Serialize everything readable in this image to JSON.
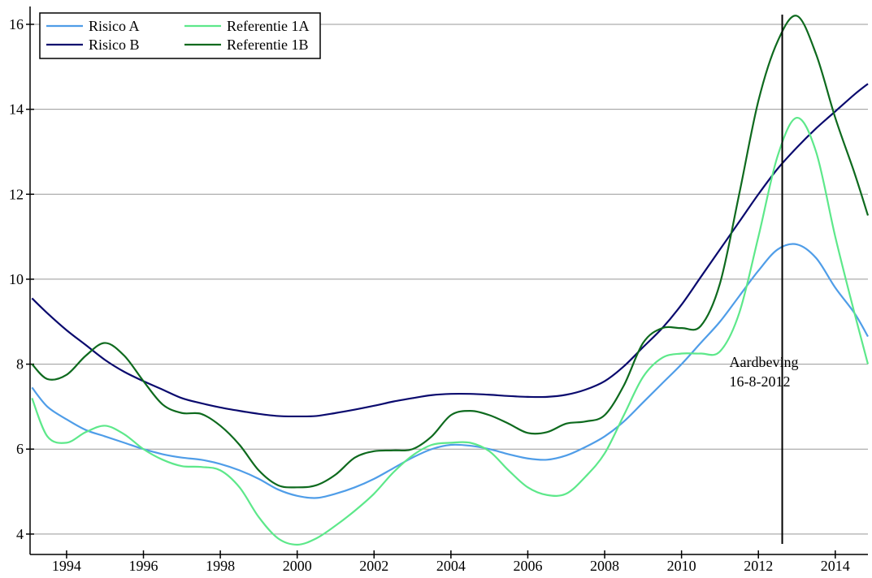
{
  "chart_data": {
    "type": "line",
    "x": [
      1993.1,
      1993.5,
      1994,
      1994.5,
      1995,
      1995.5,
      1996,
      1996.5,
      1997,
      1997.5,
      1998,
      1998.5,
      1999,
      1999.5,
      2000,
      2000.5,
      2001,
      2001.5,
      2002,
      2002.5,
      2003,
      2003.5,
      2004,
      2004.5,
      2005,
      2005.5,
      2006,
      2006.5,
      2007,
      2007.5,
      2008,
      2008.5,
      2009,
      2009.5,
      2010,
      2010.5,
      2011,
      2011.5,
      2012,
      2012.5,
      2013,
      2013.5,
      2014,
      2014.5,
      2014.85
    ],
    "series": [
      {
        "name": "Risico A",
        "color": "#4f9de8",
        "values": [
          7.45,
          7.0,
          6.7,
          6.45,
          6.3,
          6.15,
          6.0,
          5.88,
          5.8,
          5.75,
          5.65,
          5.5,
          5.3,
          5.05,
          4.9,
          4.85,
          4.95,
          5.1,
          5.3,
          5.55,
          5.8,
          6.0,
          6.1,
          6.08,
          6.0,
          5.88,
          5.78,
          5.75,
          5.85,
          6.05,
          6.3,
          6.65,
          7.1,
          7.55,
          8.0,
          8.5,
          9.0,
          9.6,
          10.2,
          10.7,
          10.82,
          10.5,
          9.8,
          9.2,
          8.65
        ]
      },
      {
        "name": "Risico B",
        "color": "#0a0a6e",
        "values": [
          9.55,
          9.2,
          8.8,
          8.45,
          8.1,
          7.82,
          7.6,
          7.4,
          7.2,
          7.08,
          6.98,
          6.9,
          6.83,
          6.78,
          6.77,
          6.78,
          6.85,
          6.93,
          7.02,
          7.12,
          7.2,
          7.27,
          7.3,
          7.3,
          7.28,
          7.25,
          7.23,
          7.23,
          7.28,
          7.4,
          7.6,
          7.95,
          8.4,
          8.85,
          9.4,
          10.05,
          10.7,
          11.35,
          12.0,
          12.6,
          13.1,
          13.55,
          13.95,
          14.35,
          14.6
        ]
      },
      {
        "name": "Referentie 1A",
        "color": "#5de88a",
        "values": [
          7.2,
          6.3,
          6.15,
          6.4,
          6.55,
          6.35,
          6.0,
          5.75,
          5.6,
          5.58,
          5.5,
          5.1,
          4.4,
          3.9,
          3.75,
          3.9,
          4.2,
          4.55,
          4.95,
          5.45,
          5.85,
          6.1,
          6.15,
          6.15,
          5.95,
          5.5,
          5.1,
          4.92,
          4.95,
          5.35,
          5.9,
          6.8,
          7.7,
          8.15,
          8.25,
          8.25,
          8.3,
          9.2,
          11.0,
          12.9,
          13.8,
          13.0,
          11.0,
          9.2,
          8.0
        ]
      },
      {
        "name": "Referentie 1B",
        "color": "#0e6a1e",
        "values": [
          8.0,
          7.65,
          7.75,
          8.2,
          8.5,
          8.2,
          7.6,
          7.05,
          6.85,
          6.83,
          6.55,
          6.1,
          5.5,
          5.15,
          5.1,
          5.15,
          5.4,
          5.8,
          5.95,
          5.97,
          6.0,
          6.3,
          6.8,
          6.9,
          6.8,
          6.6,
          6.38,
          6.4,
          6.6,
          6.65,
          6.8,
          7.5,
          8.5,
          8.85,
          8.85,
          8.9,
          9.9,
          12.0,
          14.2,
          15.6,
          16.2,
          15.3,
          13.8,
          12.5,
          11.5
        ]
      }
    ],
    "xlim": [
      1993.05,
      2014.85
    ],
    "ylim": [
      3.52,
      16.42
    ],
    "xticks": [
      1994,
      1996,
      1998,
      2000,
      2002,
      2004,
      2006,
      2008,
      2010,
      2012,
      2014
    ],
    "yticks": [
      4,
      6,
      8,
      10,
      12,
      14,
      16
    ],
    "grid": true,
    "legend": "upper left",
    "annotations": [
      {
        "x": 2012.62,
        "text": [
          "Aardbeving",
          "16-8-2012"
        ]
      }
    ]
  }
}
